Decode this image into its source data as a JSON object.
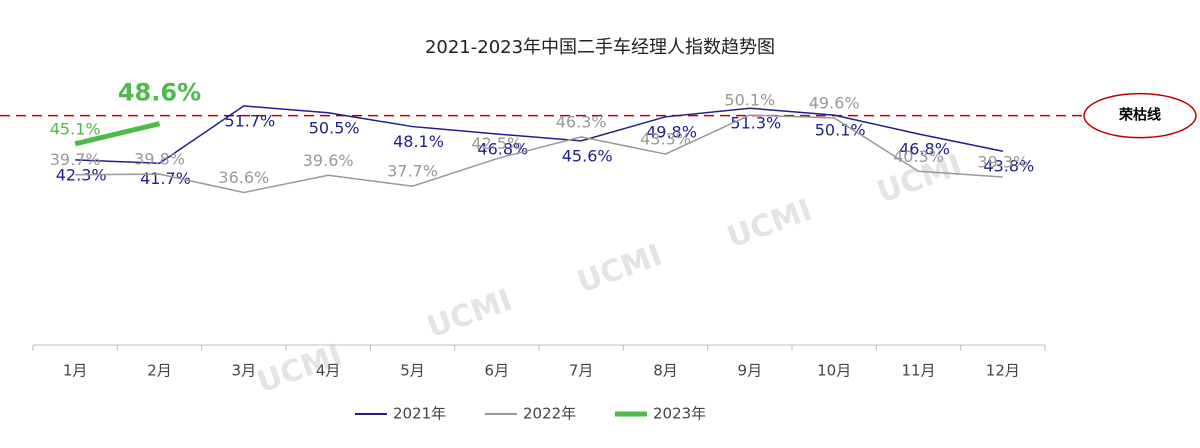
{
  "chart_data": {
    "type": "line",
    "title": "2021-2023年中国二手车经理人指数趋势图",
    "categories": [
      "1月",
      "2月",
      "3月",
      "4月",
      "5月",
      "6月",
      "7月",
      "8月",
      "9月",
      "10月",
      "11月",
      "12月"
    ],
    "series": [
      {
        "name": "2021年",
        "color": "#1f1f8a",
        "values": [
          42.3,
          41.7,
          51.7,
          50.5,
          48.1,
          46.8,
          45.6,
          49.8,
          51.3,
          50.1,
          46.8,
          43.8
        ],
        "value_labels": [
          "42.3%",
          "41.7%",
          "51.7%",
          "50.5%",
          "48.1%",
          "46.8%",
          "45.6%",
          "49.8%",
          "51.3%",
          "50.1%",
          "46.8%",
          "43.8%"
        ]
      },
      {
        "name": "2022年",
        "color": "#999999",
        "values": [
          39.7,
          39.8,
          36.6,
          39.6,
          37.7,
          42.5,
          46.3,
          43.3,
          50.1,
          49.6,
          40.3,
          39.3
        ],
        "value_labels": [
          "39.7%",
          "39.8%",
          "36.6%",
          "39.6%",
          "37.7%",
          "42.5%",
          "46.3%",
          "43.3%",
          "50.1%",
          "49.6%",
          "40.3%",
          "39.3%"
        ]
      },
      {
        "name": "2023年",
        "color": "#4cbb47",
        "values": [
          45.1,
          48.6,
          null,
          null,
          null,
          null,
          null,
          null,
          null,
          null,
          null,
          null
        ],
        "value_labels": [
          "45.1%",
          "48.6%",
          null,
          null,
          null,
          null,
          null,
          null,
          null,
          null,
          null,
          null
        ]
      }
    ],
    "ylim": [
      10,
      55
    ],
    "reference_line": {
      "value": 50,
      "label": "荣枯线",
      "color": "#c00000"
    },
    "watermark": "UCMI",
    "legend": "bottom"
  }
}
